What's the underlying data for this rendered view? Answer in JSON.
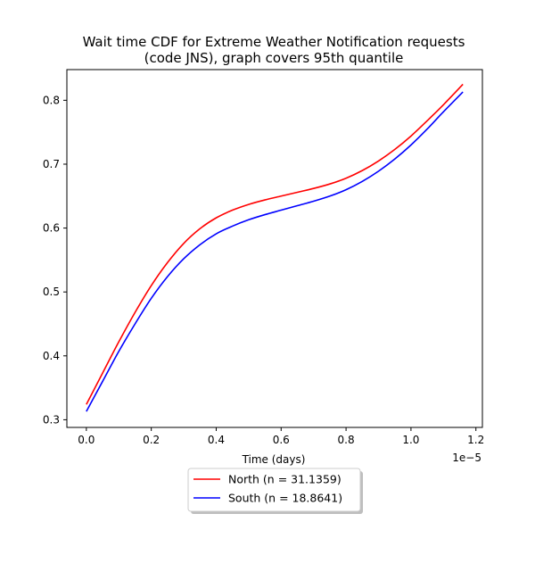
{
  "chart_data": {
    "type": "line",
    "title_lines": [
      "Wait time CDF for Extreme Weather Notification  requests",
      "(code JNS), graph covers 95th quantile"
    ],
    "xlabel": "Time (days)",
    "ylabel": "",
    "x_offset_label": "1e−5",
    "x_scale": 1e-05,
    "xlim": [
      -0.06,
      1.22
    ],
    "ylim": [
      0.288,
      0.848
    ],
    "xticks": [
      0.0,
      0.2,
      0.4,
      0.6,
      0.8,
      1.0,
      1.2
    ],
    "xtick_labels": [
      "0.0",
      "0.2",
      "0.4",
      "0.6",
      "0.8",
      "1.0",
      "1.2"
    ],
    "yticks": [
      0.3,
      0.4,
      0.5,
      0.6,
      0.7,
      0.8
    ],
    "ytick_labels": [
      "0.3",
      "0.4",
      "0.5",
      "0.6",
      "0.7",
      "0.8"
    ],
    "legend_position": "below",
    "series": [
      {
        "name": "North (n = 31.1359)",
        "color": "#ff0000",
        "x": [
          0.0,
          0.05,
          0.1,
          0.15,
          0.2,
          0.25,
          0.3,
          0.35,
          0.4,
          0.45,
          0.5,
          0.55,
          0.6,
          0.65,
          0.7,
          0.75,
          0.8,
          0.85,
          0.9,
          0.95,
          1.0,
          1.05,
          1.1,
          1.16
        ],
        "y": [
          0.324,
          0.373,
          0.422,
          0.468,
          0.51,
          0.546,
          0.576,
          0.599,
          0.616,
          0.628,
          0.637,
          0.644,
          0.65,
          0.656,
          0.662,
          0.669,
          0.678,
          0.69,
          0.705,
          0.723,
          0.744,
          0.768,
          0.793,
          0.825
        ]
      },
      {
        "name": "South (n = 18.8641)",
        "color": "#0000ff",
        "x": [
          0.0,
          0.05,
          0.1,
          0.15,
          0.2,
          0.25,
          0.3,
          0.35,
          0.4,
          0.45,
          0.5,
          0.55,
          0.6,
          0.65,
          0.7,
          0.75,
          0.8,
          0.85,
          0.9,
          0.95,
          1.0,
          1.05,
          1.1,
          1.16
        ],
        "y": [
          0.313,
          0.36,
          0.407,
          0.45,
          0.49,
          0.524,
          0.552,
          0.574,
          0.591,
          0.603,
          0.613,
          0.621,
          0.628,
          0.635,
          0.642,
          0.65,
          0.66,
          0.673,
          0.689,
          0.708,
          0.73,
          0.755,
          0.782,
          0.813
        ]
      }
    ]
  }
}
